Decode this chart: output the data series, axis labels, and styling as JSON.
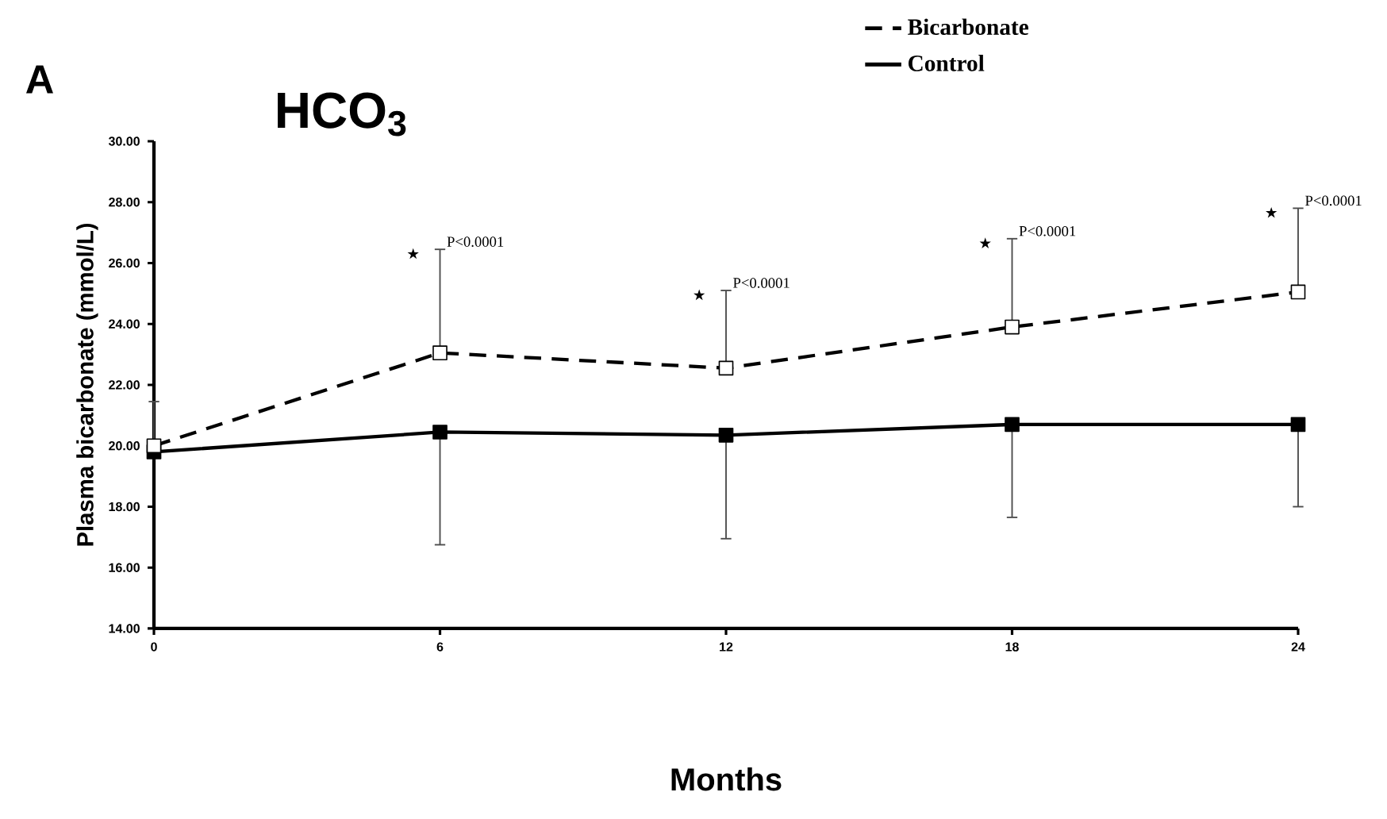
{
  "chart_data": {
    "type": "line",
    "title": "HCO$_{3}$",
    "xlabel": "Months",
    "ylabel": "Plasma bicarbonate (mmol/L)",
    "x": [
      0,
      6,
      12,
      18,
      24
    ],
    "series": [
      {
        "name": "Bicarbonate",
        "color": "#000000",
        "line_style": "dashed",
        "marker": "square",
        "values": [
          20.0,
          23.05,
          22.55,
          23.9,
          25.05
        ],
        "errors": [
          [
            20.0,
            21.45
          ],
          [
            23.05,
            26.45
          ],
          [
            22.55,
            25.1
          ],
          [
            23.9,
            26.8
          ],
          [
            25.05,
            27.8
          ]
        ]
      },
      {
        "name": "Control",
        "color": "#000000",
        "line_style": "solid",
        "marker": "square",
        "values": [
          19.8,
          20.45,
          20.35,
          20.7,
          20.7
        ],
        "errors": [
          null,
          [
            16.75,
            20.45
          ],
          [
            16.95,
            20.35
          ],
          [
            17.65,
            20.7
          ],
          [
            18.0,
            20.7
          ]
        ]
      }
    ],
    "xlim": [
      0,
      24
    ],
    "ylim": [
      14,
      30
    ],
    "xticks": [
      0,
      6,
      12,
      18,
      24
    ],
    "yticks": [
      {
        "value": 14,
        "label": "14.00"
      },
      {
        "value": 16,
        "label": "16.00"
      },
      {
        "value": 18,
        "label": "18.00"
      },
      {
        "value": 20,
        "label": "20.00"
      },
      {
        "value": 22,
        "label": "22.00"
      },
      {
        "value": 24,
        "label": "24.00"
      },
      {
        "value": 26,
        "label": "26.00"
      },
      {
        "value": 28,
        "label": "28.00"
      },
      {
        "value": 30,
        "label": "30.00"
      }
    ],
    "grid": false,
    "legend": "top right",
    "annotations": [
      "A",
      "★",
      "P<0.0001",
      "★",
      "P<0.0001",
      "★",
      "P<0.0001",
      "★",
      "P<0.0001"
    ]
  }
}
